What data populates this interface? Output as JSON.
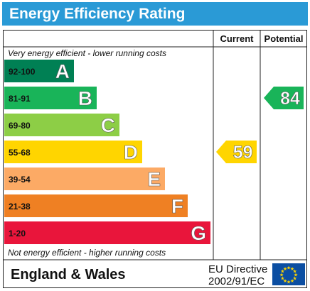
{
  "title": "Energy Efficiency Rating",
  "headers": {
    "current": "Current",
    "potential": "Potential"
  },
  "notes": {
    "top": "Very energy efficient - lower running costs",
    "bottom": "Not energy efficient - higher running costs"
  },
  "footer": {
    "region": "England & Wales",
    "directive_line1": "EU Directive",
    "directive_line2": "2002/91/EC"
  },
  "colors": {
    "title_bg": "#2a9ad6",
    "eu_flag_bg": "#0b4ea2",
    "eu_star": "#ffd500"
  },
  "chart_data": {
    "type": "bar",
    "bands": [
      {
        "range": "92-100",
        "letter": "A",
        "color": "#008054"
      },
      {
        "range": "81-91",
        "letter": "B",
        "color": "#19b459"
      },
      {
        "range": "69-80",
        "letter": "C",
        "color": "#8dce46"
      },
      {
        "range": "55-68",
        "letter": "D",
        "color": "#ffd500"
      },
      {
        "range": "39-54",
        "letter": "E",
        "color": "#fcaa65"
      },
      {
        "range": "21-38",
        "letter": "F",
        "color": "#ef8023"
      },
      {
        "range": "1-20",
        "letter": "G",
        "color": "#e9153b"
      }
    ],
    "current": {
      "value": 59,
      "band": "D",
      "color": "#ffd500"
    },
    "potential": {
      "value": 84,
      "band": "B",
      "color": "#19b459"
    }
  }
}
